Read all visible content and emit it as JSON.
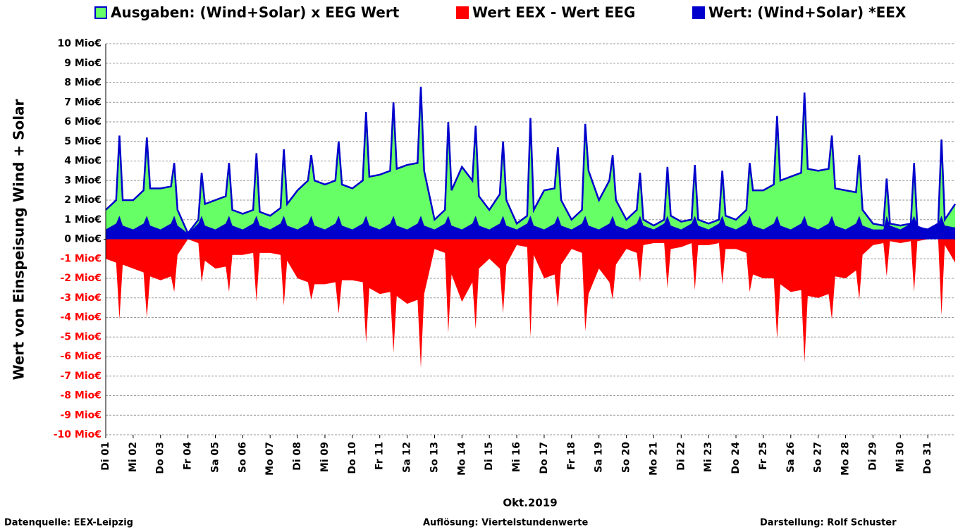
{
  "chart_data": {
    "type": "area",
    "y_label": "Wert von Einspeisung Wind + Solar",
    "x_label": "Okt.2019",
    "sources": [
      "Datenquelle: EEX-Leipzig",
      "Auflösung: Viertelstundenwerte",
      "Darstellung: Rolf Schuster"
    ],
    "xlim": [
      1,
      32
    ],
    "xticks": [
      {
        "value": 1,
        "label": "Di 01"
      },
      {
        "value": 2,
        "label": "Mi 02"
      },
      {
        "value": 3,
        "label": "Do 03"
      },
      {
        "value": 4,
        "label": "Fr 04"
      },
      {
        "value": 5,
        "label": "Sa 05"
      },
      {
        "value": 6,
        "label": "So 06"
      },
      {
        "value": 7,
        "label": "Mo 07"
      },
      {
        "value": 8,
        "label": "Di 08"
      },
      {
        "value": 9,
        "label": "Mi 09"
      },
      {
        "value": 10,
        "label": "Do 10"
      },
      {
        "value": 11,
        "label": "Fr 11"
      },
      {
        "value": 12,
        "label": "Sa 12"
      },
      {
        "value": 13,
        "label": "So 13"
      },
      {
        "value": 14,
        "label": "Mo 14"
      },
      {
        "value": 15,
        "label": "Di 15"
      },
      {
        "value": 16,
        "label": "Mi 16"
      },
      {
        "value": 17,
        "label": "Do 17"
      },
      {
        "value": 18,
        "label": "Fr 18"
      },
      {
        "value": 19,
        "label": "Sa 19"
      },
      {
        "value": 20,
        "label": "So 20"
      },
      {
        "value": 21,
        "label": "Mo 21"
      },
      {
        "value": 22,
        "label": "Di 22"
      },
      {
        "value": 23,
        "label": "Mi 23"
      },
      {
        "value": 24,
        "label": "Do 24"
      },
      {
        "value": 25,
        "label": "Fr 25"
      },
      {
        "value": 26,
        "label": "Sa 26"
      },
      {
        "value": 27,
        "label": "So 27"
      },
      {
        "value": 28,
        "label": "Mo 28"
      },
      {
        "value": 29,
        "label": "Di 29"
      },
      {
        "value": 30,
        "label": "Mi 30"
      },
      {
        "value": 31,
        "label": "Do 31"
      }
    ],
    "ylim": [
      -10,
      10
    ],
    "yticks": [
      {
        "value": 10,
        "label": "10 Mio€"
      },
      {
        "value": 9,
        "label": "9 Mio€"
      },
      {
        "value": 8,
        "label": "8 Mio€"
      },
      {
        "value": 7,
        "label": "7 Mio€"
      },
      {
        "value": 6,
        "label": "6 Mio€"
      },
      {
        "value": 5,
        "label": "5 Mio€"
      },
      {
        "value": 4,
        "label": "4 Mio€"
      },
      {
        "value": 3,
        "label": "3 Mio€"
      },
      {
        "value": 2,
        "label": "2 Mio€"
      },
      {
        "value": 1,
        "label": "1 Mio€"
      },
      {
        "value": 0,
        "label": "0 Mio€"
      },
      {
        "value": -1,
        "label": "-1 Mio€"
      },
      {
        "value": -2,
        "label": "-2 Mio€"
      },
      {
        "value": -3,
        "label": "-3 Mio€"
      },
      {
        "value": -4,
        "label": "-4 Mio€"
      },
      {
        "value": -5,
        "label": "-5 Mio€"
      },
      {
        "value": -6,
        "label": "-6 Mio€"
      },
      {
        "value": -7,
        "label": "-7 Mio€"
      },
      {
        "value": -8,
        "label": "-8 Mio€"
      },
      {
        "value": -9,
        "label": "-9 Mio€"
      },
      {
        "value": -10,
        "label": "-10 Mio€"
      }
    ],
    "negative_tick_color": "#ff0000",
    "grid": true,
    "x": [
      1,
      1.38,
      1.5,
      1.62,
      2,
      2.38,
      2.5,
      2.62,
      3,
      3.38,
      3.5,
      3.62,
      4,
      4.38,
      4.5,
      4.62,
      5,
      5.38,
      5.5,
      5.62,
      6,
      6.38,
      6.5,
      6.62,
      7,
      7.38,
      7.5,
      7.62,
      8,
      8.38,
      8.5,
      8.62,
      9,
      9.38,
      9.5,
      9.62,
      10,
      10.38,
      10.5,
      10.62,
      11,
      11.38,
      11.5,
      11.62,
      12,
      12.38,
      12.5,
      12.62,
      13,
      13.38,
      13.5,
      13.62,
      14,
      14.38,
      14.5,
      14.62,
      15,
      15.38,
      15.5,
      15.62,
      16,
      16.38,
      16.5,
      16.62,
      17,
      17.38,
      17.5,
      17.62,
      18,
      18.38,
      18.5,
      18.62,
      19,
      19.38,
      19.5,
      19.62,
      20,
      20.38,
      20.5,
      20.62,
      21,
      21.38,
      21.5,
      21.62,
      22,
      22.38,
      22.5,
      22.62,
      23,
      23.38,
      23.5,
      23.62,
      24,
      24.38,
      24.5,
      24.62,
      25,
      25.38,
      25.5,
      25.62,
      26,
      26.38,
      26.5,
      26.62,
      27,
      27.38,
      27.5,
      27.62,
      28,
      28.38,
      28.5,
      28.62,
      29,
      29.38,
      29.5,
      29.62,
      30,
      30.38,
      30.5,
      30.62,
      31,
      31.38,
      31.5,
      31.62,
      32
    ],
    "series": [
      {
        "name": "Ausgaben: (Wind+Solar) x EEG Wert",
        "color": "#66ff66",
        "outline": "#0000cc",
        "values": [
          1.5,
          2.0,
          5.3,
          2.0,
          2.0,
          2.5,
          5.2,
          2.6,
          2.6,
          2.7,
          3.9,
          1.5,
          0.3,
          1.0,
          3.4,
          1.8,
          2.0,
          2.2,
          3.9,
          1.5,
          1.3,
          1.5,
          4.4,
          1.4,
          1.2,
          1.6,
          4.6,
          1.8,
          2.5,
          3.0,
          4.3,
          3.0,
          2.8,
          3.0,
          5.0,
          2.8,
          2.6,
          3.0,
          6.5,
          3.2,
          3.3,
          3.5,
          7.0,
          3.6,
          3.8,
          3.9,
          7.8,
          3.5,
          1.0,
          1.5,
          6.0,
          2.5,
          3.7,
          3.0,
          5.8,
          2.2,
          1.5,
          2.3,
          5.0,
          2.0,
          0.8,
          1.2,
          6.2,
          1.5,
          2.5,
          2.6,
          4.7,
          2.0,
          1.0,
          1.5,
          5.9,
          3.5,
          2.0,
          3.0,
          4.3,
          2.0,
          1.0,
          1.5,
          3.4,
          1.0,
          0.7,
          1.0,
          3.7,
          1.2,
          0.9,
          1.0,
          3.8,
          1.0,
          0.8,
          1.0,
          3.5,
          1.2,
          1.0,
          1.5,
          3.9,
          2.5,
          2.5,
          2.8,
          6.3,
          3.0,
          3.2,
          3.4,
          7.5,
          3.6,
          3.5,
          3.6,
          5.3,
          2.6,
          2.5,
          2.4,
          4.3,
          1.5,
          0.8,
          0.7,
          3.1,
          0.8,
          0.7,
          0.8,
          3.9,
          0.6,
          0.5,
          0.8,
          5.1,
          1.0,
          1.8
        ]
      },
      {
        "name": "Wert EEX - Wert EEG",
        "color": "#ff0000",
        "values": [
          -1.0,
          -1.2,
          -4.1,
          -1.3,
          -1.5,
          -1.7,
          -4.0,
          -1.9,
          -2.1,
          -1.9,
          -2.7,
          -0.8,
          0,
          -0.2,
          -2.2,
          -1.1,
          -1.5,
          -1.4,
          -2.7,
          -0.8,
          -0.8,
          -0.7,
          -3.2,
          -0.7,
          -0.7,
          -0.8,
          -3.4,
          -1.1,
          -2.0,
          -2.2,
          -3.1,
          -2.3,
          -2.3,
          -2.2,
          -3.8,
          -2.1,
          -2.1,
          -2.2,
          -5.3,
          -2.5,
          -2.8,
          -2.7,
          -5.8,
          -2.9,
          -3.3,
          -3.1,
          -6.6,
          -2.8,
          -0.5,
          -0.7,
          -4.8,
          -1.8,
          -3.2,
          -2.2,
          -4.6,
          -1.5,
          -1.0,
          -1.5,
          -3.8,
          -1.3,
          -0.3,
          -0.4,
          -5.0,
          -0.8,
          -2.0,
          -1.8,
          -3.5,
          -1.3,
          -0.5,
          -0.7,
          -4.7,
          -2.8,
          -1.5,
          -2.2,
          -3.1,
          -1.3,
          -0.5,
          -0.7,
          -2.2,
          -0.3,
          -0.2,
          -0.2,
          -2.5,
          -0.5,
          -0.4,
          -0.2,
          -2.6,
          -0.3,
          -0.3,
          -0.2,
          -2.3,
          -0.5,
          -0.5,
          -0.7,
          -2.7,
          -1.8,
          -2.0,
          -2.0,
          -5.1,
          -2.3,
          -2.7,
          -2.6,
          -6.3,
          -2.9,
          -3.0,
          -2.8,
          -4.1,
          -1.9,
          -2.0,
          -1.6,
          -3.1,
          -0.8,
          -0.3,
          -0.2,
          -1.9,
          -0.1,
          -0.2,
          -0.1,
          -2.7,
          -0.1,
          0,
          0,
          -3.9,
          -0.3,
          -1.2
        ]
      },
      {
        "name": "Wert: (Wind+Solar) *EEX",
        "color": "#0000cc",
        "values": [
          0.5,
          0.8,
          1.2,
          0.7,
          0.5,
          0.8,
          1.2,
          0.7,
          0.5,
          0.8,
          1.2,
          0.7,
          0.3,
          0.8,
          1.2,
          0.7,
          0.5,
          0.8,
          1.2,
          0.7,
          0.5,
          0.8,
          1.2,
          0.7,
          0.5,
          0.8,
          1.2,
          0.7,
          0.5,
          0.8,
          1.2,
          0.7,
          0.5,
          0.8,
          1.2,
          0.7,
          0.5,
          0.8,
          1.2,
          0.7,
          0.5,
          0.8,
          1.2,
          0.7,
          0.5,
          0.8,
          1.2,
          0.7,
          0.5,
          0.8,
          1.2,
          0.7,
          0.5,
          0.8,
          1.2,
          0.7,
          0.5,
          0.8,
          1.2,
          0.7,
          0.5,
          0.8,
          1.2,
          0.7,
          0.5,
          0.8,
          1.2,
          0.7,
          0.5,
          0.8,
          1.2,
          0.7,
          0.5,
          0.8,
          1.2,
          0.7,
          0.5,
          0.8,
          1.2,
          0.7,
          0.5,
          0.8,
          1.2,
          0.7,
          0.5,
          0.8,
          1.2,
          0.7,
          0.5,
          0.8,
          1.2,
          0.7,
          0.5,
          0.8,
          1.2,
          0.7,
          0.5,
          0.8,
          1.2,
          0.7,
          0.5,
          0.8,
          1.2,
          0.7,
          0.5,
          0.8,
          1.2,
          0.7,
          0.5,
          0.8,
          1.2,
          0.7,
          0.5,
          0.5,
          1.2,
          0.7,
          0.5,
          0.8,
          1.2,
          0.7,
          0.5,
          0.8,
          1.2,
          0.7,
          0.6
        ]
      }
    ]
  }
}
